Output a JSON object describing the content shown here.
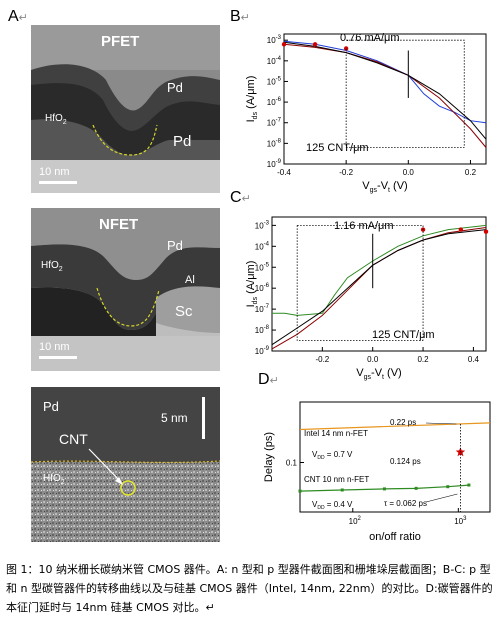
{
  "panels": {
    "A": {
      "letter": "A",
      "mark": "↵"
    },
    "B": {
      "letter": "B",
      "mark": "↵"
    },
    "C": {
      "letter": "C",
      "mark": "↵"
    },
    "D": {
      "letter": "D",
      "mark": "↵"
    }
  },
  "tem": {
    "pfet": {
      "title": "PFET",
      "gate": "Pd",
      "contact": "Pd",
      "dielectric_main": "HfO",
      "dielectric_sub": "2",
      "scale": "10 nm"
    },
    "nfet": {
      "title": "NFET",
      "gate": "Pd",
      "al": "Al",
      "contact": "Sc",
      "dielectric_main": "HfO",
      "dielectric_sub": "2",
      "scale": "10 nm"
    },
    "cnt": {
      "gate": "Pd",
      "cnt": "CNT",
      "dielectric_main": "HfO",
      "dielectric_sub": "2",
      "scale": "5 nm"
    }
  },
  "chart_data": [
    {
      "panel": "B",
      "type": "line",
      "title": "",
      "xlabel_main": "V",
      "xlabel_sub1": "gs",
      "xlabel_mid": "-V",
      "xlabel_sub2": "t",
      "xlabel_tail": " (V)",
      "ylabel_main": "I",
      "ylabel_sub": "ds",
      "ylabel_tail": " (A/μm)",
      "x_ticks": [
        "-0.4",
        "-0.2",
        "0.0",
        "0.2"
      ],
      "x_tick_values": [
        -0.4,
        -0.2,
        0.0,
        0.2
      ],
      "y_ticks": [
        "10",
        "10",
        "10",
        "10",
        "10",
        "10",
        "10"
      ],
      "y_tick_exps": [
        "-3",
        "-4",
        "-5",
        "-6",
        "-7",
        "-8",
        "-9"
      ],
      "xlim": [
        -0.4,
        0.25
      ],
      "ylim_log10": [
        -9,
        -2.7
      ],
      "annotations": {
        "current": "0.76 mA/μm",
        "density": "125 CNT/μm"
      },
      "series": [
        {
          "color": "#1f3fd8",
          "x": [
            -0.4,
            -0.3,
            -0.2,
            -0.1,
            0.0,
            0.05,
            0.1,
            0.15,
            0.2,
            0.25
          ],
          "log_y": [
            -3.05,
            -3.2,
            -3.5,
            -4.0,
            -4.7,
            -5.6,
            -6.2,
            -6.5,
            -6.9,
            -7.0
          ]
        },
        {
          "color": "#8b0000",
          "x": [
            -0.4,
            -0.3,
            -0.2,
            -0.1,
            0.0,
            0.1,
            0.2,
            0.25
          ],
          "log_y": [
            -3.2,
            -3.35,
            -3.6,
            -4.05,
            -4.7,
            -5.8,
            -7.3,
            -8.2
          ]
        },
        {
          "color": "#000000",
          "x": [
            -0.4,
            -0.3,
            -0.2,
            -0.1,
            0.0,
            0.1,
            0.2,
            0.25
          ],
          "log_y": [
            -3.1,
            -3.3,
            -3.6,
            -4.1,
            -4.7,
            -5.6,
            -6.9,
            -7.8
          ]
        }
      ],
      "markers": {
        "color": "#d40000",
        "x": [
          -0.4,
          -0.3,
          -0.2
        ],
        "log_y": [
          -3.2,
          -3.2,
          -3.4
        ]
      }
    },
    {
      "panel": "C",
      "type": "line",
      "title": "",
      "xlabel_main": "V",
      "xlabel_sub1": "gs",
      "xlabel_mid": "-V",
      "xlabel_sub2": "t",
      "xlabel_tail": " (V)",
      "ylabel_main": "I",
      "ylabel_sub": "ds",
      "ylabel_tail": " (A/μm)",
      "x_ticks": [
        "-0.2",
        "0.0",
        "0.2",
        "0.4"
      ],
      "x_tick_values": [
        -0.2,
        0.0,
        0.2,
        0.4
      ],
      "y_ticks": [
        "10",
        "10",
        "10",
        "10",
        "10",
        "10",
        "10"
      ],
      "y_tick_exps": [
        "-3",
        "-4",
        "-5",
        "-6",
        "-7",
        "-8",
        "-9"
      ],
      "xlim": [
        -0.4,
        0.45
      ],
      "ylim_log10": [
        -9,
        -2.6
      ],
      "annotations": {
        "current": "1.16 mA/μm",
        "density": "125 CNT/μm"
      },
      "series": [
        {
          "color": "#2e8b22",
          "x": [
            -0.4,
            -0.35,
            -0.3,
            -0.25,
            -0.2,
            -0.15,
            -0.1,
            0.0,
            0.1,
            0.2,
            0.3,
            0.45
          ],
          "log_y": [
            -7.2,
            -7.2,
            -7.3,
            -7.25,
            -7.2,
            -6.3,
            -5.5,
            -4.7,
            -4.0,
            -3.5,
            -3.2,
            -3.0
          ]
        },
        {
          "color": "#8b0000",
          "x": [
            -0.4,
            -0.3,
            -0.2,
            -0.1,
            0.0,
            0.1,
            0.2,
            0.3,
            0.45
          ],
          "log_y": [
            -8.9,
            -8.2,
            -7.3,
            -6.1,
            -4.9,
            -4.2,
            -3.7,
            -3.35,
            -3.1
          ]
        },
        {
          "color": "#000000",
          "x": [
            -0.4,
            -0.3,
            -0.2,
            -0.1,
            0.0,
            0.1,
            0.2,
            0.3,
            0.45
          ],
          "log_y": [
            -8.7,
            -7.9,
            -7.1,
            -6.0,
            -4.9,
            -4.2,
            -3.7,
            -3.4,
            -3.2
          ]
        }
      ],
      "markers": {
        "color": "#d40000",
        "x": [
          0.2,
          0.35,
          0.45
        ],
        "log_y": [
          -3.2,
          -3.2,
          -3.3
        ]
      }
    },
    {
      "panel": "D",
      "type": "line",
      "title": "",
      "xlabel": "on/off ratio",
      "ylabel": "Delay (ps)",
      "x_ticks": [
        "10",
        "10"
      ],
      "x_tick_exps": [
        "2",
        "3"
      ],
      "y_ticks": [
        "0.1"
      ],
      "xlim_log10": [
        1.5,
        3.3
      ],
      "ylim_log10": [
        -1.45,
        -0.45
      ],
      "annotations": {
        "intel_label": "Intel 14 nm n-FET",
        "intel_vdd_main": "V",
        "intel_vdd_sub": "DD",
        "intel_vdd_val": " = 0.7 V",
        "intel_delay": "0.22 ps",
        "star_label": "0.124 ps",
        "cnt_label": "CNT 10 nm n-FET",
        "cnt_vdd_main": "V",
        "cnt_vdd_sub": "DD",
        "cnt_vdd_val": " = 0.4 V",
        "cnt_delay": "τ = 0.062 ps"
      },
      "series": [
        {
          "name": "Intel 14 nm n-FET",
          "color": "#e8961e",
          "x_log10": [
            1.5,
            3.3
          ],
          "log_y": [
            -0.7,
            -0.64
          ]
        },
        {
          "name": "CNT 10 nm n-FET",
          "color": "#2e8b22",
          "x_log10": [
            1.5,
            1.9,
            2.3,
            2.6,
            2.9,
            3.1
          ],
          "log_y": [
            -1.26,
            -1.25,
            -1.24,
            -1.235,
            -1.22,
            -1.205
          ]
        }
      ],
      "star": {
        "color": "#d40000",
        "x_log10": 3.02,
        "log_y": -0.906
      }
    }
  ],
  "caption": "图 1：10 纳米栅长碳纳米管 CMOS 器件。A: n 型和 p 型器件截面图和栅堆垛层截面图；B-C: p 型和 n 型碳管器件的转移曲线以及与硅基 CMOS 器件（Intel, 14nm, 22nm）的对比。D:碳管器件的本征门延时与 14nm 硅基 CMOS 对比。↵"
}
